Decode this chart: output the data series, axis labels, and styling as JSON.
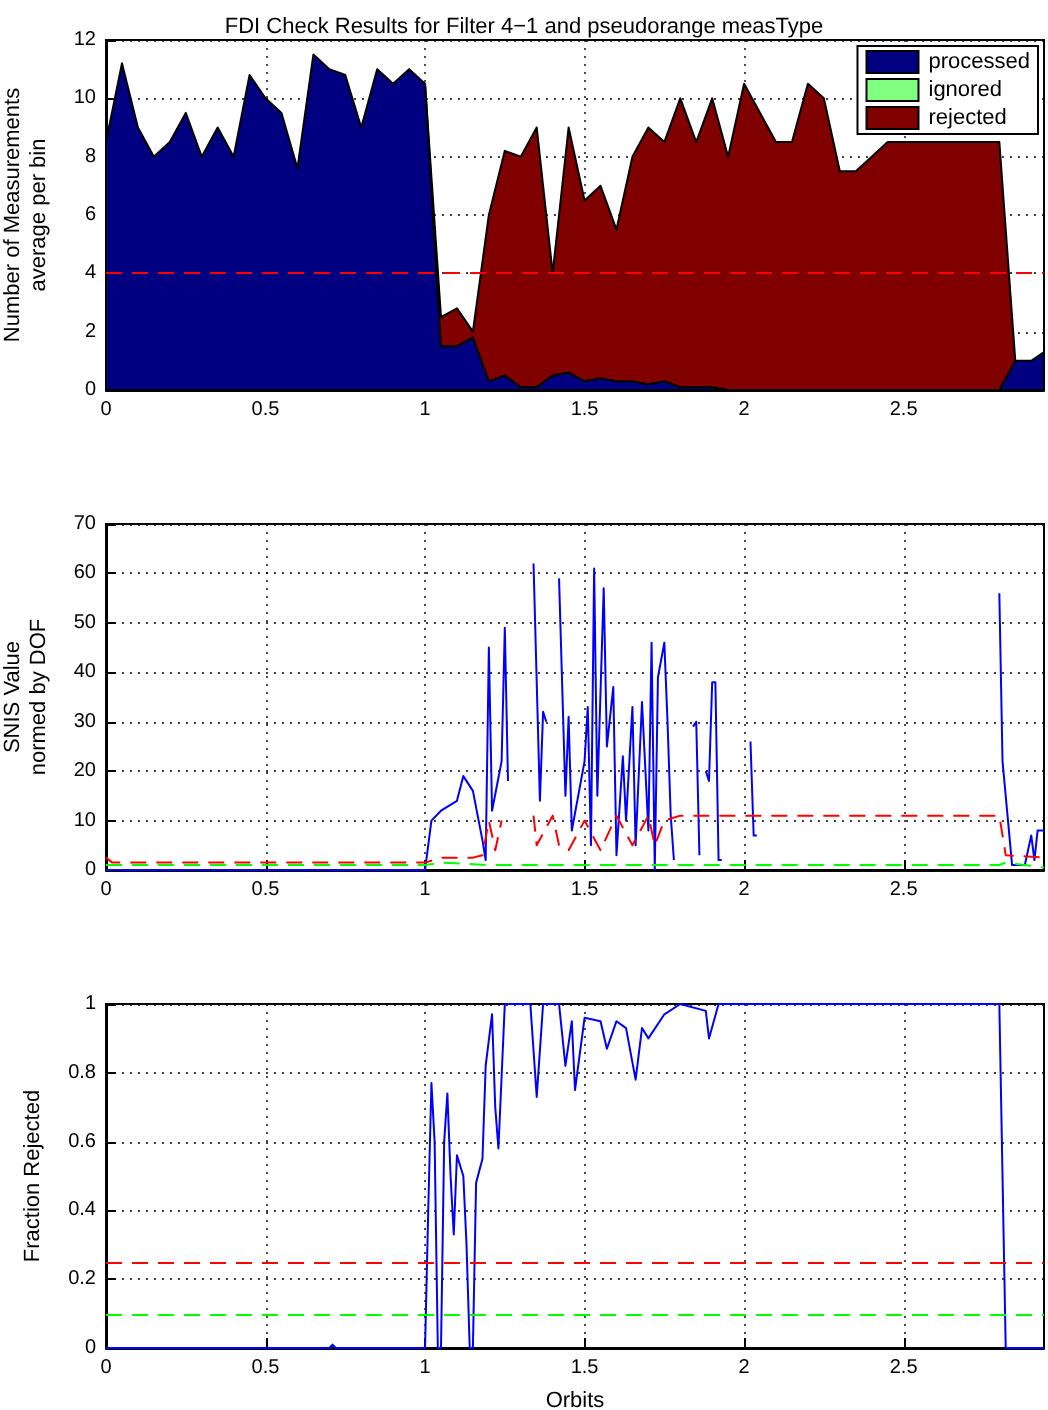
{
  "chart_data": [
    {
      "type": "area",
      "title": "FDI Check Results for Filter 4−1 and pseudorange measType",
      "ylabel": "Number of Measurements\naverage per bin",
      "stacked": true,
      "legend": "top right",
      "grid": true,
      "x": [
        0,
        0.05,
        0.1,
        0.15,
        0.2,
        0.25,
        0.3,
        0.35,
        0.4,
        0.45,
        0.5,
        0.55,
        0.6,
        0.65,
        0.7,
        0.75,
        0.8,
        0.85,
        0.9,
        0.95,
        1.0,
        1.05,
        1.1,
        1.15,
        1.2,
        1.25,
        1.3,
        1.35,
        1.4,
        1.45,
        1.5,
        1.55,
        1.6,
        1.65,
        1.7,
        1.75,
        1.8,
        1.85,
        1.9,
        1.95,
        2.0,
        2.05,
        2.1,
        2.15,
        2.2,
        2.25,
        2.3,
        2.35,
        2.4,
        2.45,
        2.5,
        2.55,
        2.6,
        2.65,
        2.7,
        2.75,
        2.8,
        2.85,
        2.9,
        2.94
      ],
      "series": [
        {
          "name": "processed",
          "color": "#000080",
          "values": [
            8.5,
            11.2,
            9.0,
            8.0,
            8.5,
            9.5,
            8.0,
            9.0,
            8.0,
            10.8,
            10.0,
            9.5,
            7.6,
            11.5,
            11.0,
            10.8,
            9.0,
            11.0,
            10.5,
            11.0,
            10.5,
            1.5,
            1.5,
            1.8,
            0.3,
            0.5,
            0.1,
            0.1,
            0.5,
            0.6,
            0.3,
            0.4,
            0.3,
            0.3,
            0.2,
            0.3,
            0.1,
            0.1,
            0.1,
            0,
            0,
            0,
            0,
            0,
            0,
            0,
            0,
            0,
            0,
            0,
            0,
            0,
            0,
            0,
            0,
            0,
            0,
            1.0,
            1.0,
            1.3
          ]
        },
        {
          "name": "ignored",
          "color": "#80ff80",
          "values": [
            null,
            null,
            null,
            null,
            null,
            null,
            null,
            null,
            null,
            null,
            null,
            null,
            null,
            null,
            null,
            null,
            null,
            null,
            null,
            null,
            null,
            null,
            null,
            null,
            null,
            null,
            null,
            null,
            null,
            null,
            null,
            null,
            null,
            null,
            null,
            null,
            null,
            null,
            null,
            null,
            null,
            null,
            null,
            null,
            null,
            null,
            null,
            null,
            null,
            null,
            null,
            null,
            null,
            null,
            null,
            null,
            null,
            null,
            null,
            null
          ]
        },
        {
          "name": "rejected",
          "color": "#800000",
          "values": [
            null,
            null,
            null,
            null,
            null,
            null,
            null,
            null,
            null,
            null,
            null,
            null,
            null,
            null,
            null,
            null,
            null,
            null,
            null,
            null,
            0,
            1.0,
            1.3,
            0.2,
            5.7,
            7.7,
            7.9,
            8.9,
            3.5,
            8.4,
            6.2,
            6.6,
            5.2,
            7.7,
            8.8,
            8.2,
            9.9,
            8.4,
            9.9,
            8.0,
            10.5,
            9.5,
            8.5,
            8.5,
            10.5,
            10.0,
            7.5,
            7.5,
            8.0,
            8.5,
            8.5,
            8.5,
            8.5,
            8.5,
            8.5,
            8.5,
            8.5,
            0,
            null,
            null
          ]
        }
      ],
      "ref_lines": [
        {
          "axis": "y",
          "value": 4,
          "color": "#ff0000",
          "line_style": "dashed"
        }
      ],
      "xlim": [
        0,
        2.94
      ],
      "xticks": [
        0,
        0.5,
        1,
        1.5,
        2,
        2.5
      ],
      "ylim": [
        0,
        12
      ],
      "yticks": [
        0,
        2,
        4,
        6,
        8,
        10,
        12
      ]
    },
    {
      "type": "line",
      "ylabel": "SNIS Value\nnormed by DOF",
      "grid": true,
      "series": [
        {
          "color": "#0000ff",
          "line_style": "solid",
          "x": [
            0,
            1.0,
            1.02,
            1.05,
            1.1,
            1.12,
            1.15,
            1.18,
            1.19,
            1.2,
            1.21,
            1.24,
            1.25,
            1.26,
            1.3,
            1.34,
            1.36,
            1.37,
            1.38,
            1.4,
            1.42,
            1.44,
            1.45,
            1.46,
            1.5,
            1.51,
            1.52,
            1.53,
            1.54,
            1.56,
            1.57,
            1.59,
            1.6,
            1.62,
            1.63,
            1.65,
            1.66,
            1.68,
            1.7,
            1.71,
            1.72,
            1.73,
            1.75,
            1.76,
            1.77,
            1.78,
            1.8,
            1.84,
            1.85,
            1.86,
            1.87,
            1.88,
            1.89,
            1.9,
            1.91,
            1.92,
            1.93,
            1.95,
            2.02,
            2.03,
            2.04,
            2.1,
            2.8,
            2.81,
            2.84,
            2.88,
            2.9,
            2.91,
            2.92,
            2.94
          ],
          "values": [
            0,
            0,
            10,
            12,
            14,
            19,
            16,
            6,
            2,
            45,
            12,
            22,
            49,
            18,
            null,
            62,
            14,
            32,
            30,
            null,
            59,
            15,
            31,
            8,
            22,
            33,
            5,
            61,
            15,
            57,
            25,
            37,
            3,
            23,
            10,
            33,
            5,
            34,
            8,
            46,
            0,
            39,
            46,
            30,
            11,
            2,
            null,
            29,
            30,
            3,
            null,
            20,
            18,
            38,
            38,
            2,
            2,
            null,
            26,
            7,
            7,
            null,
            56,
            22,
            1,
            1,
            7,
            2,
            8,
            8
          ]
        },
        {
          "color": "#ff0000",
          "line_style": "dashed",
          "x": [
            0,
            0.02,
            1.0,
            1.05,
            1.15,
            1.18,
            1.2,
            1.22,
            1.24,
            1.3,
            1.34,
            1.35,
            1.4,
            1.42,
            1.45,
            1.5,
            1.55,
            1.6,
            1.65,
            1.7,
            1.72,
            1.75,
            1.8,
            2.0,
            2.1,
            2.8,
            2.82,
            2.94
          ],
          "values": [
            2.5,
            1.5,
            1.5,
            2.5,
            2.5,
            3,
            10,
            4,
            10,
            null,
            11,
            5,
            11,
            5,
            4,
            10,
            4,
            11,
            5,
            11,
            5,
            10,
            11,
            11,
            11,
            11,
            3,
            2.5
          ]
        },
        {
          "color": "#00ff00",
          "line_style": "dashed",
          "x": [
            0,
            1.0,
            1.05,
            1.2,
            2.8,
            2.82,
            2.94
          ],
          "values": [
            1,
            1,
            1.5,
            1,
            1,
            1.5,
            0.5
          ]
        }
      ],
      "xlim": [
        0,
        2.94
      ],
      "xticks": [
        0,
        0.5,
        1,
        1.5,
        2,
        2.5
      ],
      "ylim": [
        0,
        70
      ],
      "yticks": [
        0,
        10,
        20,
        30,
        40,
        50,
        60,
        70
      ]
    },
    {
      "type": "line",
      "xlabel": "Orbits",
      "ylabel": "Fraction Rejected",
      "grid": true,
      "series": [
        {
          "color": "#0000ff",
          "x": [
            0,
            0.7,
            0.71,
            0.72,
            1.0,
            1.01,
            1.02,
            1.03,
            1.04,
            1.05,
            1.06,
            1.07,
            1.08,
            1.09,
            1.1,
            1.12,
            1.13,
            1.14,
            1.15,
            1.16,
            1.18,
            1.19,
            1.21,
            1.22,
            1.23,
            1.25,
            1.33,
            1.35,
            1.37,
            1.42,
            1.44,
            1.46,
            1.47,
            1.5,
            1.55,
            1.57,
            1.6,
            1.63,
            1.66,
            1.68,
            1.7,
            1.75,
            1.8,
            1.88,
            1.89,
            1.92,
            2.8,
            2.82,
            2.94
          ],
          "values": [
            0,
            0,
            0.01,
            0,
            0,
            0.4,
            0.77,
            0.6,
            0,
            0,
            0.6,
            0.74,
            0.5,
            0.33,
            0.56,
            0.5,
            0.3,
            0,
            0,
            0.48,
            0.55,
            0.82,
            0.97,
            0.7,
            0.58,
            1,
            1,
            0.73,
            1,
            1,
            0.82,
            0.95,
            0.75,
            0.96,
            0.95,
            0.87,
            0.95,
            0.93,
            0.78,
            0.93,
            0.9,
            0.97,
            1,
            0.98,
            0.9,
            1,
            1,
            0,
            0
          ]
        }
      ],
      "ref_lines": [
        {
          "axis": "y",
          "value": 0.25,
          "color": "#ff0000",
          "line_style": "dashed"
        },
        {
          "axis": "y",
          "value": 0.1,
          "color": "#00ff00",
          "line_style": "dashed"
        }
      ],
      "xlim": [
        0,
        2.94
      ],
      "xticks": [
        0,
        0.5,
        1,
        1.5,
        2,
        2.5
      ],
      "ylim": [
        0,
        1
      ],
      "yticks": [
        0,
        0.2,
        0.4,
        0.6,
        0.8,
        1
      ]
    }
  ]
}
